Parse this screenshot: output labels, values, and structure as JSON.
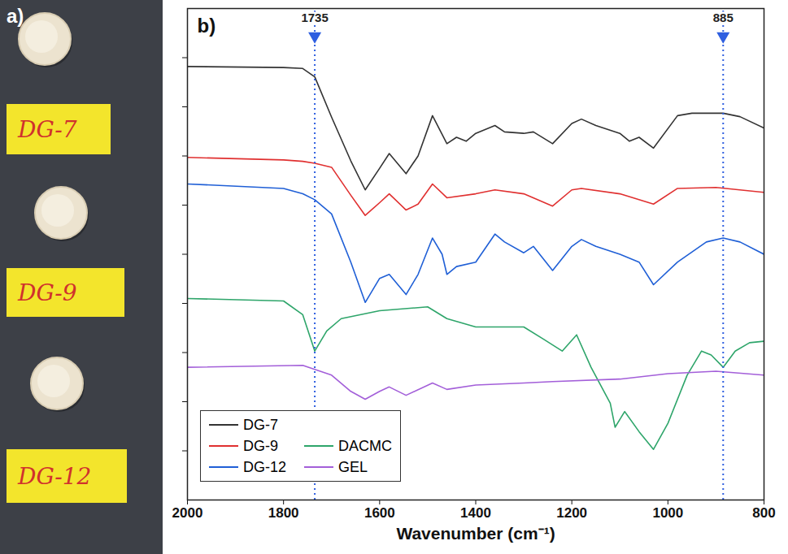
{
  "photo": {
    "panel_label": "a)",
    "sample_labels": [
      "DG-7",
      "DG-9",
      "DG-12"
    ]
  },
  "chart_data": {
    "type": "line",
    "panel_label": "b)",
    "x_label": "Wavenumber (cm⁻¹)",
    "xlim": [
      2000,
      800
    ],
    "xticks": [
      2000,
      1800,
      1600,
      1400,
      1200,
      1000,
      800
    ],
    "ylim": [
      0,
      10
    ],
    "yticks": [
      1,
      2,
      3,
      4,
      5,
      6,
      7,
      8,
      9
    ],
    "tick_labels": "x",
    "grid": false,
    "legend": "bottom-left",
    "annotations": [
      {
        "x": 1735,
        "label": "1735"
      },
      {
        "x": 885,
        "label": "885"
      }
    ],
    "series": [
      {
        "name": "DG-7",
        "color": "#333333",
        "x": [
          2000,
          1800,
          1760,
          1735,
          1700,
          1660,
          1630,
          1600,
          1580,
          1545,
          1520,
          1490,
          1460,
          1440,
          1420,
          1400,
          1360,
          1340,
          1300,
          1280,
          1240,
          1200,
          1180,
          1150,
          1100,
          1080,
          1060,
          1030,
          980,
          950,
          900,
          885,
          850,
          800
        ],
        "values": [
          8.82,
          8.8,
          8.78,
          8.61,
          7.79,
          6.9,
          6.31,
          6.75,
          7.05,
          6.64,
          7.0,
          7.82,
          7.25,
          7.38,
          7.3,
          7.46,
          7.62,
          7.49,
          7.46,
          7.49,
          7.25,
          7.66,
          7.75,
          7.62,
          7.46,
          7.3,
          7.38,
          7.16,
          7.82,
          7.87,
          7.87,
          7.87,
          7.8,
          7.57
        ]
      },
      {
        "name": "DG-9",
        "color": "#e03030",
        "x": [
          2000,
          1800,
          1760,
          1735,
          1700,
          1660,
          1630,
          1600,
          1580,
          1545,
          1520,
          1490,
          1460,
          1400,
          1360,
          1300,
          1240,
          1200,
          1180,
          1100,
          1030,
          980,
          900,
          800
        ],
        "values": [
          6.97,
          6.92,
          6.89,
          6.85,
          6.77,
          6.2,
          5.79,
          6.05,
          6.23,
          5.9,
          6.02,
          6.43,
          6.15,
          6.23,
          6.31,
          6.23,
          5.98,
          6.31,
          6.34,
          6.23,
          6.02,
          6.34,
          6.36,
          6.26
        ]
      },
      {
        "name": "DG-12",
        "color": "#1f5fd6",
        "x": [
          2000,
          1800,
          1760,
          1735,
          1700,
          1660,
          1630,
          1600,
          1580,
          1545,
          1520,
          1490,
          1470,
          1460,
          1440,
          1400,
          1360,
          1340,
          1300,
          1280,
          1240,
          1200,
          1180,
          1150,
          1100,
          1060,
          1030,
          980,
          920,
          885,
          850,
          800
        ],
        "values": [
          6.43,
          6.34,
          6.23,
          6.11,
          5.82,
          4.84,
          4.02,
          4.51,
          4.59,
          4.18,
          4.59,
          5.33,
          5.0,
          4.59,
          4.75,
          4.84,
          5.41,
          5.25,
          5.03,
          5.16,
          4.67,
          5.16,
          5.3,
          5.16,
          5.0,
          4.84,
          4.38,
          4.84,
          5.25,
          5.33,
          5.25,
          5.0
        ]
      },
      {
        "name": "DACMC",
        "color": "#2ea56a",
        "x": [
          2000,
          1800,
          1760,
          1735,
          1710,
          1680,
          1600,
          1500,
          1460,
          1400,
          1300,
          1260,
          1220,
          1190,
          1160,
          1120,
          1110,
          1090,
          1060,
          1030,
          1000,
          960,
          930,
          910,
          885,
          860,
          830,
          800
        ],
        "values": [
          4.1,
          4.05,
          3.77,
          3.03,
          3.44,
          3.69,
          3.85,
          3.93,
          3.69,
          3.52,
          3.52,
          3.28,
          3.03,
          3.36,
          2.7,
          1.97,
          1.48,
          1.8,
          1.39,
          1.03,
          1.56,
          2.54,
          3.03,
          2.95,
          2.7,
          3.03,
          3.2,
          3.23
        ]
      },
      {
        "name": "GEL",
        "color": "#a35fd9",
        "x": [
          2000,
          1760,
          1700,
          1660,
          1630,
          1600,
          1580,
          1545,
          1490,
          1460,
          1400,
          1300,
          1240,
          1100,
          1000,
          900,
          800
        ],
        "values": [
          2.7,
          2.74,
          2.54,
          2.21,
          2.05,
          2.21,
          2.3,
          2.13,
          2.38,
          2.25,
          2.34,
          2.38,
          2.41,
          2.46,
          2.57,
          2.62,
          2.54
        ]
      }
    ]
  }
}
